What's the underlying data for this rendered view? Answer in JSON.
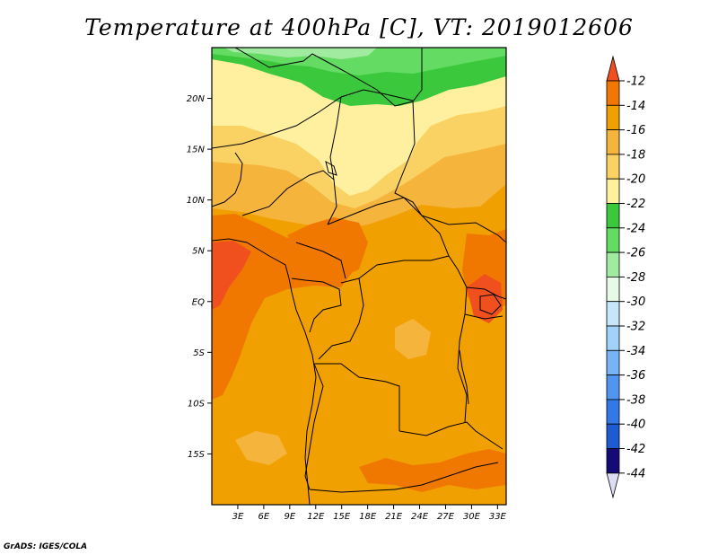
{
  "title": "Temperature at 400hPa [C], VT: 2019012606",
  "footer": "GrADS: IGES/COLA",
  "map": {
    "lon_range": [
      0,
      34
    ],
    "lat_range": [
      -20,
      25
    ],
    "lat_ticks": [
      {
        "value": 20,
        "label": "20N"
      },
      {
        "value": 15,
        "label": "15N"
      },
      {
        "value": 10,
        "label": "10N"
      },
      {
        "value": 5,
        "label": "5N"
      },
      {
        "value": 0,
        "label": "EQ"
      },
      {
        "value": -5,
        "label": "5S"
      },
      {
        "value": -10,
        "label": "10S"
      },
      {
        "value": -15,
        "label": "15S"
      }
    ],
    "lon_ticks": [
      {
        "value": 3,
        "label": "3E"
      },
      {
        "value": 6,
        "label": "6E"
      },
      {
        "value": 9,
        "label": "9E"
      },
      {
        "value": 12,
        "label": "12E"
      },
      {
        "value": 15,
        "label": "15E"
      },
      {
        "value": 18,
        "label": "18E"
      },
      {
        "value": 21,
        "label": "21E"
      },
      {
        "value": 24,
        "label": "24E"
      },
      {
        "value": 27,
        "label": "27E"
      },
      {
        "value": 30,
        "label": "30E"
      },
      {
        "value": 33,
        "label": "33E"
      }
    ]
  },
  "colorbar": {
    "levels": [
      "-12",
      "-14",
      "-16",
      "-18",
      "-20",
      "-22",
      "-24",
      "-26",
      "-28",
      "-30",
      "-32",
      "-34",
      "-36",
      "-38",
      "-40",
      "-42",
      "-44"
    ],
    "colors": [
      "#f0501e",
      "#f07800",
      "#f0a000",
      "#f5b43c",
      "#fad264",
      "#fff0a0",
      "#3cc83c",
      "#64dc64",
      "#a0eba0",
      "#e6fae6",
      "#c8e6fa",
      "#a0d2fa",
      "#78b4f5",
      "#5096f0",
      "#3278e6",
      "#1e5ad2",
      "#140a78",
      "#dcdcf5"
    ]
  },
  "regions": [
    {
      "name": "region-warm-west-coast",
      "color": "#f0501e"
    },
    {
      "name": "region-warm-central",
      "color": "#f0501e"
    },
    {
      "name": "region-warm-lakes",
      "color": "#f0501e"
    },
    {
      "name": "region-cool-sahel",
      "color": "#fff0a0"
    },
    {
      "name": "region-cold-sahara",
      "color": "#3cc83c"
    },
    {
      "name": "region-colder-sahara",
      "color": "#64dc64"
    }
  ]
}
